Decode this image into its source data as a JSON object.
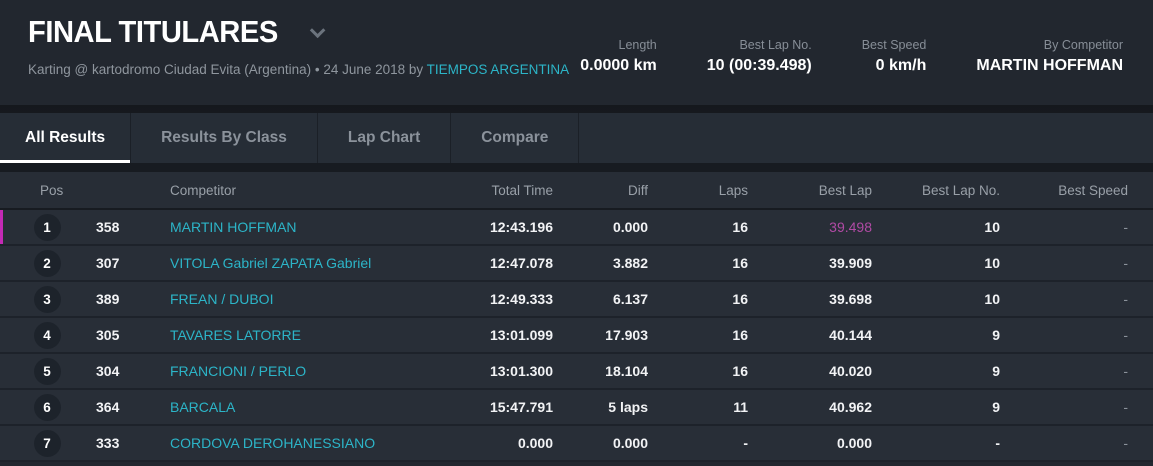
{
  "header": {
    "title": "FINAL TITULARES",
    "subtitle_text": "Karting @ kartodromo Ciudad Evita (Argentina) • 24 June 2018 by ",
    "subtitle_link": "TIEMPOS ARGENTINA",
    "stats": [
      {
        "label": "Length",
        "value": "0.0000 km"
      },
      {
        "label": "Best Lap No.",
        "value": "10 (00:39.498)"
      },
      {
        "label": "Best Speed",
        "value": "0 km/h"
      },
      {
        "label": "By Competitor",
        "value": "MARTIN HOFFMAN"
      }
    ]
  },
  "tabs": [
    {
      "label": "All Results",
      "active": true
    },
    {
      "label": "Results By Class",
      "active": false
    },
    {
      "label": "Lap Chart",
      "active": false
    },
    {
      "label": "Compare",
      "active": false
    }
  ],
  "table": {
    "columns": {
      "pos": "Pos",
      "competitor": "Competitor",
      "total_time": "Total Time",
      "diff": "Diff",
      "laps": "Laps",
      "best_lap": "Best Lap",
      "best_lap_no": "Best Lap No.",
      "best_speed": "Best Speed"
    },
    "rows": [
      {
        "pos": "1",
        "number": "358",
        "competitor": "MARTIN HOFFMAN",
        "total_time": "12:43.196",
        "diff": "0.000",
        "laps": "16",
        "best_lap": "39.498",
        "best_lap_no": "10",
        "best_speed": "-",
        "highlight": true,
        "fastest": true
      },
      {
        "pos": "2",
        "number": "307",
        "competitor": "VITOLA Gabriel ZAPATA Gabriel",
        "total_time": "12:47.078",
        "diff": "3.882",
        "laps": "16",
        "best_lap": "39.909",
        "best_lap_no": "10",
        "best_speed": "-",
        "highlight": false,
        "fastest": false
      },
      {
        "pos": "3",
        "number": "389",
        "competitor": "FREAN / DUBOI",
        "total_time": "12:49.333",
        "diff": "6.137",
        "laps": "16",
        "best_lap": "39.698",
        "best_lap_no": "10",
        "best_speed": "-",
        "highlight": false,
        "fastest": false
      },
      {
        "pos": "4",
        "number": "305",
        "competitor": "TAVARES LATORRE",
        "total_time": "13:01.099",
        "diff": "17.903",
        "laps": "16",
        "best_lap": "40.144",
        "best_lap_no": "9",
        "best_speed": "-",
        "highlight": false,
        "fastest": false
      },
      {
        "pos": "5",
        "number": "304",
        "competitor": "FRANCIONI / PERLO",
        "total_time": "13:01.300",
        "diff": "18.104",
        "laps": "16",
        "best_lap": "40.020",
        "best_lap_no": "9",
        "best_speed": "-",
        "highlight": false,
        "fastest": false
      },
      {
        "pos": "6",
        "number": "364",
        "competitor": "BARCALA",
        "total_time": "15:47.791",
        "diff": "5 laps",
        "laps": "11",
        "best_lap": "40.962",
        "best_lap_no": "9",
        "best_speed": "-",
        "highlight": false,
        "fastest": false
      },
      {
        "pos": "7",
        "number": "333",
        "competitor": "CORDOVA DEROHANESSIANO",
        "total_time": "0.000",
        "diff": "0.000",
        "laps": "-",
        "best_lap": "0.000",
        "best_lap_no": "-",
        "best_speed": "-",
        "highlight": false,
        "fastest": false
      }
    ]
  },
  "colors": {
    "accent_teal": "#2cb5c8",
    "highlight_magenta": "#c42ab5",
    "fastest_lap": "#b04aa4",
    "page_bg": "#22272f",
    "row_bg": "#282e37"
  }
}
